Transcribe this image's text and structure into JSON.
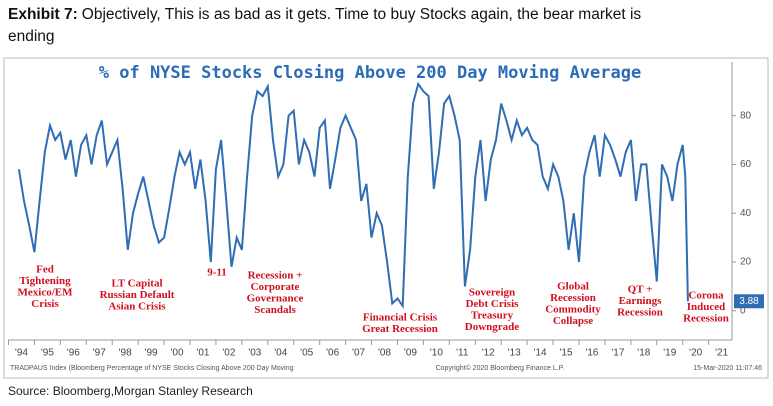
{
  "chart_data": {
    "type": "line",
    "exhibit": "Exhibit 7:",
    "headline": "Objectively, This is as bad as it gets. Time to buy Stocks again, the bear market is ending",
    "title": "% of NYSE Stocks Closing Above 200 Day Moving Average",
    "color": "#2f6db5",
    "x": [
      1994.4,
      1994.6,
      1994.8,
      1995.0,
      1995.2,
      1995.4,
      1995.6,
      1995.8,
      1996.0,
      1996.2,
      1996.4,
      1996.6,
      1996.8,
      1997.0,
      1997.2,
      1997.4,
      1997.6,
      1997.8,
      1998.0,
      1998.2,
      1998.4,
      1998.6,
      1998.8,
      1999.0,
      1999.2,
      1999.4,
      1999.6,
      1999.8,
      2000.0,
      2000.2,
      2000.4,
      2000.6,
      2000.8,
      2001.0,
      2001.2,
      2001.4,
      2001.6,
      2001.8,
      2002.0,
      2002.2,
      2002.4,
      2002.6,
      2002.8,
      2003.0,
      2003.2,
      2003.4,
      2003.6,
      2003.8,
      2004.0,
      2004.2,
      2004.4,
      2004.6,
      2004.8,
      2005.0,
      2005.2,
      2005.4,
      2005.6,
      2005.8,
      2006.0,
      2006.2,
      2006.4,
      2006.6,
      2006.8,
      2007.0,
      2007.2,
      2007.4,
      2007.6,
      2007.8,
      2008.0,
      2008.2,
      2008.4,
      2008.6,
      2008.8,
      2009.0,
      2009.2,
      2009.4,
      2009.6,
      2009.8,
      2010.0,
      2010.2,
      2010.4,
      2010.6,
      2010.8,
      2011.0,
      2011.2,
      2011.4,
      2011.6,
      2011.8,
      2012.0,
      2012.2,
      2012.4,
      2012.6,
      2012.8,
      2013.0,
      2013.2,
      2013.4,
      2013.6,
      2013.8,
      2014.0,
      2014.2,
      2014.4,
      2014.6,
      2014.8,
      2015.0,
      2015.2,
      2015.4,
      2015.6,
      2015.8,
      2016.0,
      2016.2,
      2016.4,
      2016.6,
      2016.8,
      2017.0,
      2017.2,
      2017.4,
      2017.6,
      2017.8,
      2018.0,
      2018.2,
      2018.4,
      2018.6,
      2018.8,
      2019.0,
      2019.2,
      2019.4,
      2019.6,
      2019.8,
      2020.0,
      2020.1,
      2020.2
    ],
    "values": [
      58,
      45,
      35,
      24,
      45,
      65,
      76,
      70,
      73,
      62,
      70,
      55,
      68,
      72,
      60,
      72,
      78,
      60,
      65,
      70,
      50,
      25,
      40,
      48,
      55,
      45,
      35,
      28,
      30,
      42,
      55,
      65,
      60,
      65,
      50,
      62,
      45,
      20,
      58,
      70,
      45,
      18,
      30,
      25,
      55,
      80,
      90,
      88,
      92,
      70,
      55,
      60,
      80,
      82,
      60,
      70,
      65,
      55,
      75,
      78,
      50,
      62,
      75,
      80,
      75,
      70,
      45,
      52,
      30,
      40,
      35,
      20,
      3,
      5,
      2,
      55,
      85,
      93,
      90,
      88,
      50,
      65,
      85,
      88,
      80,
      70,
      10,
      25,
      55,
      70,
      45,
      62,
      70,
      85,
      78,
      70,
      78,
      72,
      75,
      70,
      68,
      55,
      50,
      60,
      55,
      45,
      25,
      40,
      20,
      55,
      65,
      72,
      55,
      72,
      68,
      62,
      55,
      65,
      70,
      45,
      60,
      60,
      35,
      12,
      60,
      55,
      45,
      60,
      68,
      55,
      3.88
    ],
    "xlim": [
      1993.75,
      2021.9
    ],
    "xticks": [
      {
        "value": 1994,
        "label": "'94"
      },
      {
        "value": 1995,
        "label": "'95"
      },
      {
        "value": 1996,
        "label": "'96"
      },
      {
        "value": 1997,
        "label": "'97"
      },
      {
        "value": 1998,
        "label": "'98"
      },
      {
        "value": 1999,
        "label": "'99"
      },
      {
        "value": 2000,
        "label": "'00"
      },
      {
        "value": 2001,
        "label": "'01"
      },
      {
        "value": 2002,
        "label": "'02"
      },
      {
        "value": 2003,
        "label": "'03"
      },
      {
        "value": 2004,
        "label": "'04"
      },
      {
        "value": 2005,
        "label": "'05"
      },
      {
        "value": 2006,
        "label": "'06"
      },
      {
        "value": 2007,
        "label": "'07"
      },
      {
        "value": 2008,
        "label": "'08"
      },
      {
        "value": 2009,
        "label": "'09"
      },
      {
        "value": 2010,
        "label": "'10"
      },
      {
        "value": 2011,
        "label": "'11"
      },
      {
        "value": 2012,
        "label": "'12"
      },
      {
        "value": 2013,
        "label": "'13"
      },
      {
        "value": 2014,
        "label": "'14"
      },
      {
        "value": 2015,
        "label": "'15"
      },
      {
        "value": 2016,
        "label": "'16"
      },
      {
        "value": 2017,
        "label": "'17"
      },
      {
        "value": 2018,
        "label": "'18"
      },
      {
        "value": 2019,
        "label": "'19"
      },
      {
        "value": 2020,
        "label": "'20"
      },
      {
        "value": 2021,
        "label": "'21"
      }
    ],
    "ylim": [
      -12,
      102
    ],
    "yticks": [
      0,
      20,
      40,
      60,
      80
    ],
    "annotations": [
      [
        "Fed",
        "Tightening",
        "Mexico/EM",
        "Crisis"
      ],
      [
        "LT Capital",
        "Russian Default",
        "Asian Crisis"
      ],
      [
        "9-11"
      ],
      [
        "Recession +",
        "Corporate",
        "Governance",
        "Scandals"
      ],
      [
        "Financial Crisis",
        "Great Recession"
      ],
      [
        "Sovereign",
        "Debt Crisis",
        "Treasury",
        "Downgrade"
      ],
      [
        "Global",
        "Recession",
        "Commodity",
        "Collapse"
      ],
      [
        "QT +",
        "Earnings",
        "Recession"
      ],
      [
        "Corona",
        "Induced",
        "Recession"
      ]
    ],
    "footer_left": "TRADPAUS Index (Bloomberg Percentage of NYSE Stocks Closing Above 200 Day Moving",
    "footer_mid": "Copyright© 2020 Bloomberg Finance L.P.",
    "footer_right": "15-Mar-2020 11:07:46",
    "source": "Source: Bloomberg,Morgan Stanley Research"
  }
}
